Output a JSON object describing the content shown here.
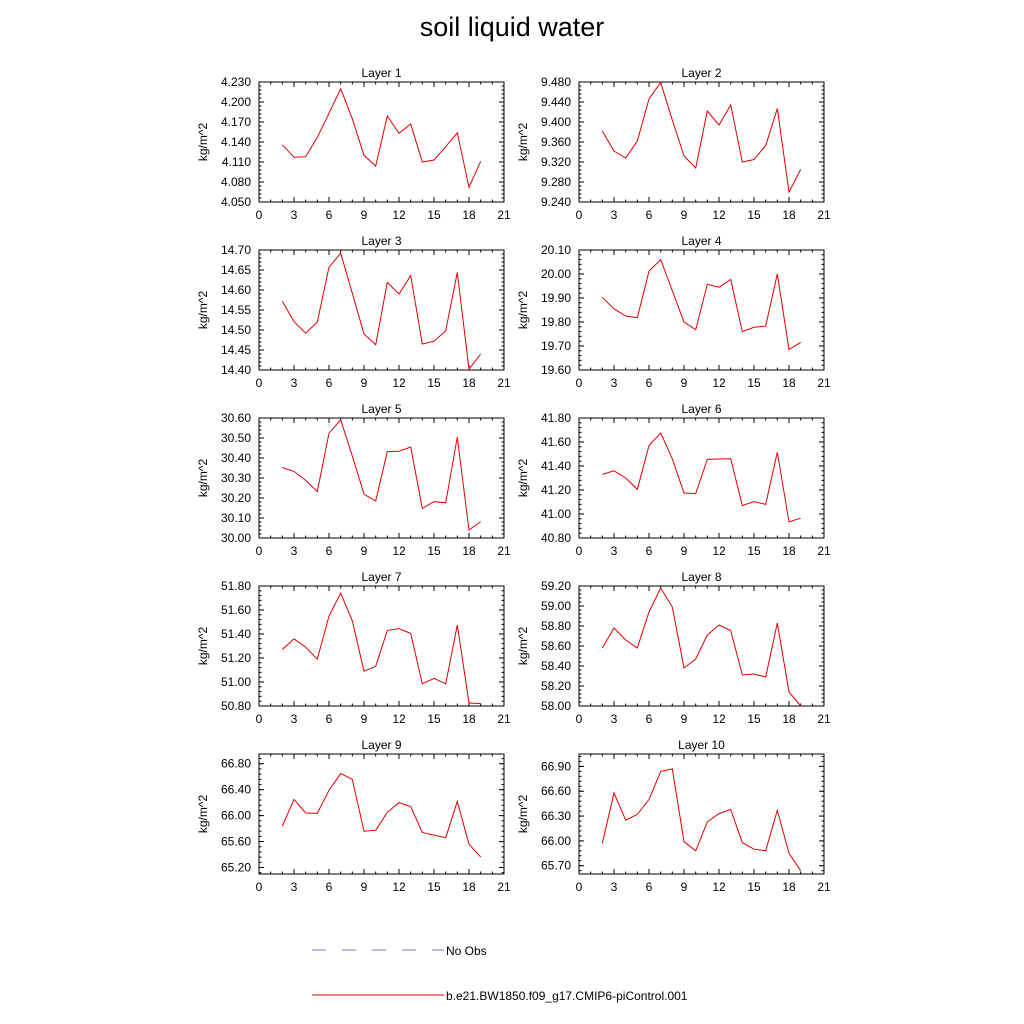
{
  "title": "soil liquid water",
  "legend": {
    "obs_label": "No Obs",
    "obs_color": "#7b7bd6",
    "model_label": "b.e21.BW1850.f09_g17.CMIP6-piControl.001",
    "model_color": "#e00000"
  },
  "chart_data": [
    {
      "type": "line",
      "title": "Layer 1",
      "ylabel": "kg/m^2",
      "xlim": [
        0,
        21
      ],
      "x_ticks": [
        0,
        3,
        6,
        9,
        12,
        15,
        18,
        21
      ],
      "ylim": [
        4.05,
        4.23
      ],
      "y_ticks": [
        "4.050",
        "4.080",
        "4.110",
        "4.140",
        "4.170",
        "4.200",
        "4.230"
      ],
      "x": [
        2,
        3,
        4,
        5,
        6,
        7,
        8,
        9,
        10,
        11,
        12,
        13,
        14,
        15,
        16,
        17,
        18,
        19
      ],
      "series": [
        {
          "name": "b.e21.BW1850.f09_g17.CMIP6-piControl.001",
          "values": [
            4.136,
            4.117,
            4.118,
            4.147,
            4.183,
            4.22,
            4.175,
            4.12,
            4.104,
            4.179,
            4.153,
            4.167,
            4.11,
            4.113,
            4.133,
            4.154,
            4.072,
            4.111
          ]
        }
      ]
    },
    {
      "type": "line",
      "title": "Layer 2",
      "ylabel": "kg/m^2",
      "xlim": [
        0,
        21
      ],
      "x_ticks": [
        0,
        3,
        6,
        9,
        12,
        15,
        18,
        21
      ],
      "ylim": [
        9.24,
        9.48
      ],
      "y_ticks": [
        "9.240",
        "9.280",
        "9.320",
        "9.360",
        "9.400",
        "9.440",
        "9.480"
      ],
      "x": [
        2,
        3,
        4,
        5,
        6,
        7,
        8,
        9,
        10,
        11,
        12,
        13,
        14,
        15,
        16,
        17,
        18,
        19
      ],
      "series": [
        {
          "name": "b.e21.BW1850.f09_g17.CMIP6-piControl.001",
          "values": [
            9.382,
            9.342,
            9.328,
            9.362,
            9.446,
            9.479,
            9.404,
            9.332,
            9.308,
            9.422,
            9.394,
            9.434,
            9.32,
            9.325,
            9.353,
            9.427,
            9.26,
            9.305
          ]
        }
      ]
    },
    {
      "type": "line",
      "title": "Layer 3",
      "ylabel": "kg/m^2",
      "xlim": [
        0,
        21
      ],
      "x_ticks": [
        0,
        3,
        6,
        9,
        12,
        15,
        18,
        21
      ],
      "ylim": [
        14.4,
        14.7
      ],
      "y_ticks": [
        "14.40",
        "14.45",
        "14.50",
        "14.55",
        "14.60",
        "14.65",
        "14.70"
      ],
      "x": [
        2,
        3,
        4,
        5,
        6,
        7,
        8,
        9,
        10,
        11,
        12,
        13,
        14,
        15,
        16,
        17,
        18,
        19
      ],
      "series": [
        {
          "name": "b.e21.BW1850.f09_g17.CMIP6-piControl.001",
          "values": [
            14.572,
            14.521,
            14.492,
            14.52,
            14.657,
            14.692,
            14.592,
            14.49,
            14.463,
            14.619,
            14.59,
            14.636,
            14.465,
            14.472,
            14.498,
            14.644,
            14.402,
            14.44
          ]
        }
      ]
    },
    {
      "type": "line",
      "title": "Layer 4",
      "ylabel": "kg/m^2",
      "xlim": [
        0,
        21
      ],
      "x_ticks": [
        0,
        3,
        6,
        9,
        12,
        15,
        18,
        21
      ],
      "ylim": [
        19.6,
        20.1
      ],
      "y_ticks": [
        "19.60",
        "19.70",
        "19.80",
        "19.90",
        "20.00",
        "20.10"
      ],
      "x": [
        2,
        3,
        4,
        5,
        6,
        7,
        8,
        9,
        10,
        11,
        12,
        13,
        14,
        15,
        16,
        17,
        18,
        19
      ],
      "series": [
        {
          "name": "b.e21.BW1850.f09_g17.CMIP6-piControl.001",
          "values": [
            19.903,
            19.855,
            19.825,
            19.818,
            20.012,
            20.06,
            19.93,
            19.8,
            19.768,
            19.957,
            19.945,
            19.977,
            19.76,
            19.778,
            19.783,
            20.0,
            19.686,
            19.715
          ]
        }
      ]
    },
    {
      "type": "line",
      "title": "Layer 5",
      "ylabel": "kg/m^2",
      "xlim": [
        0,
        21
      ],
      "x_ticks": [
        0,
        3,
        6,
        9,
        12,
        15,
        18,
        21
      ],
      "ylim": [
        30.0,
        30.6
      ],
      "y_ticks": [
        "30.00",
        "30.10",
        "30.20",
        "30.30",
        "30.40",
        "30.50",
        "30.60"
      ],
      "x": [
        2,
        3,
        4,
        5,
        6,
        7,
        8,
        9,
        10,
        11,
        12,
        13,
        14,
        15,
        16,
        17,
        18,
        19
      ],
      "series": [
        {
          "name": "b.e21.BW1850.f09_g17.CMIP6-piControl.001",
          "values": [
            30.352,
            30.333,
            30.288,
            30.232,
            30.524,
            30.591,
            30.41,
            30.219,
            30.185,
            30.432,
            30.434,
            30.455,
            30.148,
            30.182,
            30.176,
            30.504,
            30.04,
            30.082
          ]
        }
      ]
    },
    {
      "type": "line",
      "title": "Layer 6",
      "ylabel": "kg/m^2",
      "xlim": [
        0,
        21
      ],
      "x_ticks": [
        0,
        3,
        6,
        9,
        12,
        15,
        18,
        21
      ],
      "ylim": [
        40.8,
        41.8
      ],
      "y_ticks": [
        "40.80",
        "41.00",
        "41.20",
        "41.40",
        "41.60",
        "41.80"
      ],
      "x": [
        2,
        3,
        4,
        5,
        6,
        7,
        8,
        9,
        10,
        11,
        12,
        13,
        14,
        15,
        16,
        17,
        18,
        19
      ],
      "series": [
        {
          "name": "b.e21.BW1850.f09_g17.CMIP6-piControl.001",
          "values": [
            41.33,
            41.36,
            41.3,
            41.205,
            41.57,
            41.675,
            41.46,
            41.175,
            41.17,
            41.455,
            41.458,
            41.46,
            41.07,
            41.103,
            41.08,
            41.515,
            40.935,
            40.965
          ]
        }
      ]
    },
    {
      "type": "line",
      "title": "Layer 7",
      "ylabel": "kg/m^2",
      "xlim": [
        0,
        21
      ],
      "x_ticks": [
        0,
        3,
        6,
        9,
        12,
        15,
        18,
        21
      ],
      "ylim": [
        50.8,
        51.8
      ],
      "y_ticks": [
        "50.80",
        "51.00",
        "51.20",
        "51.40",
        "51.60",
        "51.80"
      ],
      "x": [
        2,
        3,
        4,
        5,
        6,
        7,
        8,
        9,
        10,
        11,
        12,
        13,
        14,
        15,
        16,
        17,
        18,
        19
      ],
      "series": [
        {
          "name": "b.e21.BW1850.f09_g17.CMIP6-piControl.001",
          "values": [
            51.27,
            51.36,
            51.29,
            51.19,
            51.55,
            51.74,
            51.51,
            51.09,
            51.13,
            51.43,
            51.445,
            51.405,
            50.985,
            51.03,
            50.985,
            51.475,
            50.825,
            50.82
          ]
        }
      ]
    },
    {
      "type": "line",
      "title": "Layer 8",
      "ylabel": "kg/m^2",
      "xlim": [
        0,
        21
      ],
      "x_ticks": [
        0,
        3,
        6,
        9,
        12,
        15,
        18,
        21
      ],
      "ylim": [
        58.0,
        59.2
      ],
      "y_ticks": [
        "58.00",
        "58.20",
        "58.40",
        "58.60",
        "58.80",
        "59.00",
        "59.20"
      ],
      "x": [
        2,
        3,
        4,
        5,
        6,
        7,
        8,
        9,
        10,
        11,
        12,
        13,
        14,
        15,
        16,
        17,
        18,
        19
      ],
      "series": [
        {
          "name": "b.e21.BW1850.f09_g17.CMIP6-piControl.001",
          "values": [
            58.58,
            58.78,
            58.66,
            58.58,
            58.94,
            59.18,
            58.99,
            58.38,
            58.47,
            58.71,
            58.81,
            58.755,
            58.31,
            58.32,
            58.29,
            58.83,
            58.14,
            58.0
          ]
        }
      ]
    },
    {
      "type": "line",
      "title": "Layer 9",
      "ylabel": "kg/m^2",
      "xlim": [
        0,
        21
      ],
      "x_ticks": [
        0,
        3,
        6,
        9,
        12,
        15,
        18,
        21
      ],
      "ylim": [
        65.1,
        66.95
      ],
      "y_ticks": [
        "65.20",
        "65.60",
        "66.00",
        "66.40",
        "66.80"
      ],
      "x": [
        2,
        3,
        4,
        5,
        6,
        7,
        8,
        9,
        10,
        11,
        12,
        13,
        14,
        15,
        16,
        17,
        18,
        19
      ],
      "series": [
        {
          "name": "b.e21.BW1850.f09_g17.CMIP6-piControl.001",
          "values": [
            65.84,
            66.25,
            66.04,
            66.035,
            66.39,
            66.65,
            66.56,
            65.76,
            65.775,
            66.05,
            66.2,
            66.14,
            65.74,
            65.7,
            65.66,
            66.22,
            65.56,
            65.36
          ]
        }
      ]
    },
    {
      "type": "line",
      "title": "Layer 10",
      "ylabel": "kg/m^2",
      "xlim": [
        0,
        21
      ],
      "x_ticks": [
        0,
        3,
        6,
        9,
        12,
        15,
        18,
        21
      ],
      "ylim": [
        65.6,
        67.05
      ],
      "y_ticks": [
        "65.70",
        "66.00",
        "66.30",
        "66.60",
        "66.90"
      ],
      "x": [
        2,
        3,
        4,
        5,
        6,
        7,
        8,
        9,
        10,
        11,
        12,
        13,
        14,
        15,
        16,
        17,
        18,
        19
      ],
      "series": [
        {
          "name": "b.e21.BW1850.f09_g17.CMIP6-piControl.001",
          "values": [
            65.97,
            66.58,
            66.25,
            66.32,
            66.5,
            66.84,
            66.87,
            65.99,
            65.88,
            66.23,
            66.33,
            66.38,
            65.98,
            65.9,
            65.88,
            66.37,
            65.85,
            65.64
          ]
        }
      ]
    }
  ]
}
